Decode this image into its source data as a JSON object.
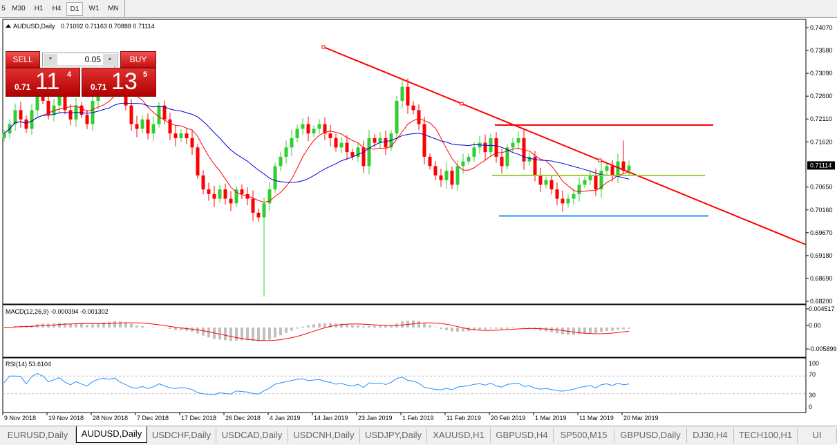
{
  "timeframes": [
    "5",
    "M30",
    "H1",
    "H4",
    "D1",
    "W1",
    "MN"
  ],
  "selected_timeframe": "D1",
  "chart": {
    "title": "AUDUSD,Daily",
    "ohlc_text": "0.71092 0.71163 0.70888 0.71114",
    "current_price": "0.71114",
    "price_ticks": [
      "0.74070",
      "0.73580",
      "0.73090",
      "0.72600",
      "0.72110",
      "0.71620",
      "0.70650",
      "0.70160",
      "0.69670",
      "0.69180",
      "0.68690",
      "0.68200"
    ],
    "date_labels": [
      "9 Nov 2018",
      "19 Nov 2018",
      "28 Nov 2018",
      "7 Dec 2018",
      "17 Dec 2018",
      "26 Dec 2018",
      "4 Jan 2019",
      "14 Jan 2019",
      "23 Jan 2019",
      "1 Feb 2019",
      "11 Feb 2019",
      "20 Feb 2019",
      "1 Mar 2019",
      "11 Mar 2019",
      "20 Mar 2019"
    ],
    "closes": [
      0.718,
      0.72,
      0.723,
      0.721,
      0.719,
      0.723,
      0.726,
      0.725,
      0.722,
      0.724,
      0.726,
      0.723,
      0.721,
      0.724,
      0.722,
      0.72,
      0.725,
      0.728,
      0.73,
      0.729,
      0.731,
      0.727,
      0.724,
      0.72,
      0.719,
      0.721,
      0.718,
      0.72,
      0.724,
      0.721,
      0.718,
      0.717,
      0.718,
      0.717,
      0.715,
      0.709,
      0.706,
      0.705,
      0.704,
      0.706,
      0.704,
      0.703,
      0.706,
      0.705,
      0.704,
      0.701,
      0.7,
      0.703,
      0.706,
      0.711,
      0.713,
      0.715,
      0.717,
      0.719,
      0.72,
      0.718,
      0.719,
      0.72,
      0.718,
      0.717,
      0.715,
      0.716,
      0.714,
      0.713,
      0.715,
      0.711,
      0.717,
      0.716,
      0.717,
      0.715,
      0.718,
      0.725,
      0.728,
      0.724,
      0.723,
      0.72,
      0.713,
      0.711,
      0.709,
      0.708,
      0.71,
      0.707,
      0.711,
      0.712,
      0.713,
      0.715,
      0.716,
      0.714,
      0.717,
      0.713,
      0.711,
      0.715,
      0.716,
      0.717,
      0.712,
      0.713,
      0.709,
      0.707,
      0.708,
      0.706,
      0.704,
      0.703,
      0.704,
      0.705,
      0.707,
      0.708,
      0.709,
      0.706,
      0.71,
      0.711,
      0.709,
      0.712,
      0.71,
      0.7111
    ],
    "spike_low": {
      "bar": 47,
      "value": 0.683
    },
    "spike_high": {
      "bar": 112,
      "value": 0.7165
    },
    "levels": {
      "resistance": 0.7198,
      "pivot": 0.709,
      "support": 0.7003
    },
    "colors": {
      "bull": "#32cd32",
      "bear": "#ff0000",
      "ma_fast": "#ff0000",
      "ma_slow": "#0000dd",
      "trendline": "#ff0000",
      "resistance": "#ff0000",
      "pivot": "#9acd32",
      "support": "#1e90ff",
      "rsi": "#1e90ff",
      "macd_hist": "#c0c0c0",
      "macd_signal": "#ff0000"
    }
  },
  "macd": {
    "label": "MACD(12,26,9) -0.000394 -0.001302",
    "ticks": [
      "0.004517",
      "0.00",
      "-0.005899"
    ]
  },
  "rsi": {
    "label": "RSI(14) 53.6104",
    "ticks": [
      "100",
      "70",
      "30",
      "0"
    ]
  },
  "trade": {
    "sell": "SELL",
    "buy": "BUY",
    "lot": "0.05",
    "bid_pre": "0.71",
    "bid_main": "11",
    "bid_sup": "4",
    "ask_pre": "0.71",
    "ask_main": "13",
    "ask_sup": "5"
  },
  "tabs": [
    "EURUSD,Daily",
    "AUDUSD,Daily",
    "USDCHF,Daily",
    "USDCAD,Daily",
    "USDCNH,Daily",
    "USDJPY,Daily",
    "XAUUSD,H1",
    "GBPUSD,H4",
    "SP500,M15",
    "GBPUSD,Daily",
    "DJ30,H4",
    "TECH100,H1",
    "UI"
  ],
  "active_tab": "AUDUSD,Daily"
}
